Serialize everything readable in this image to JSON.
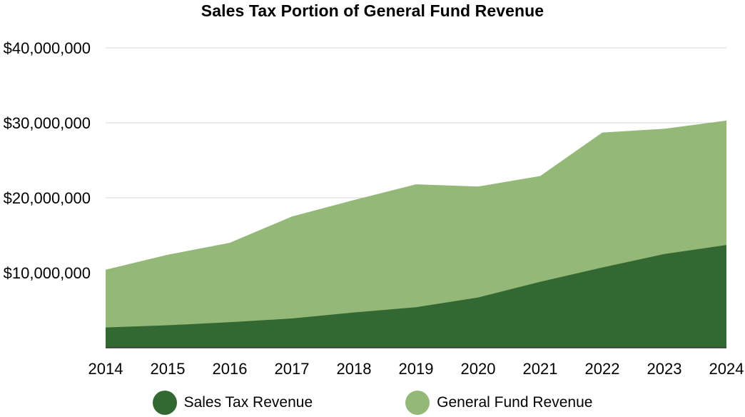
{
  "chart_data": {
    "type": "area",
    "title": "Sales Tax Portion of General Fund Revenue",
    "xlabel": "",
    "ylabel": "",
    "x": [
      "2014",
      "2015",
      "2016",
      "2017",
      "2018",
      "2019",
      "2020",
      "2021",
      "2022",
      "2023",
      "2024"
    ],
    "ylim": [
      0,
      40000000
    ],
    "yticks": [
      10000000,
      20000000,
      30000000,
      40000000
    ],
    "ytick_labels": [
      "$10,000,000",
      "$20,000,000",
      "$30,000,000",
      "$40,000,000"
    ],
    "grid": true,
    "stacked": false,
    "legend_position": "bottom",
    "series": [
      {
        "name": "General Fund Revenue",
        "color": "#93b878",
        "values": [
          10400000,
          12400000,
          14000000,
          17500000,
          19700000,
          21800000,
          21500000,
          22900000,
          28700000,
          29200000,
          30300000
        ]
      },
      {
        "name": "Sales Tax Revenue",
        "color": "#336833",
        "values": [
          2700000,
          3000000,
          3400000,
          3900000,
          4700000,
          5400000,
          6700000,
          8800000,
          10700000,
          12500000,
          13700000
        ]
      }
    ]
  }
}
